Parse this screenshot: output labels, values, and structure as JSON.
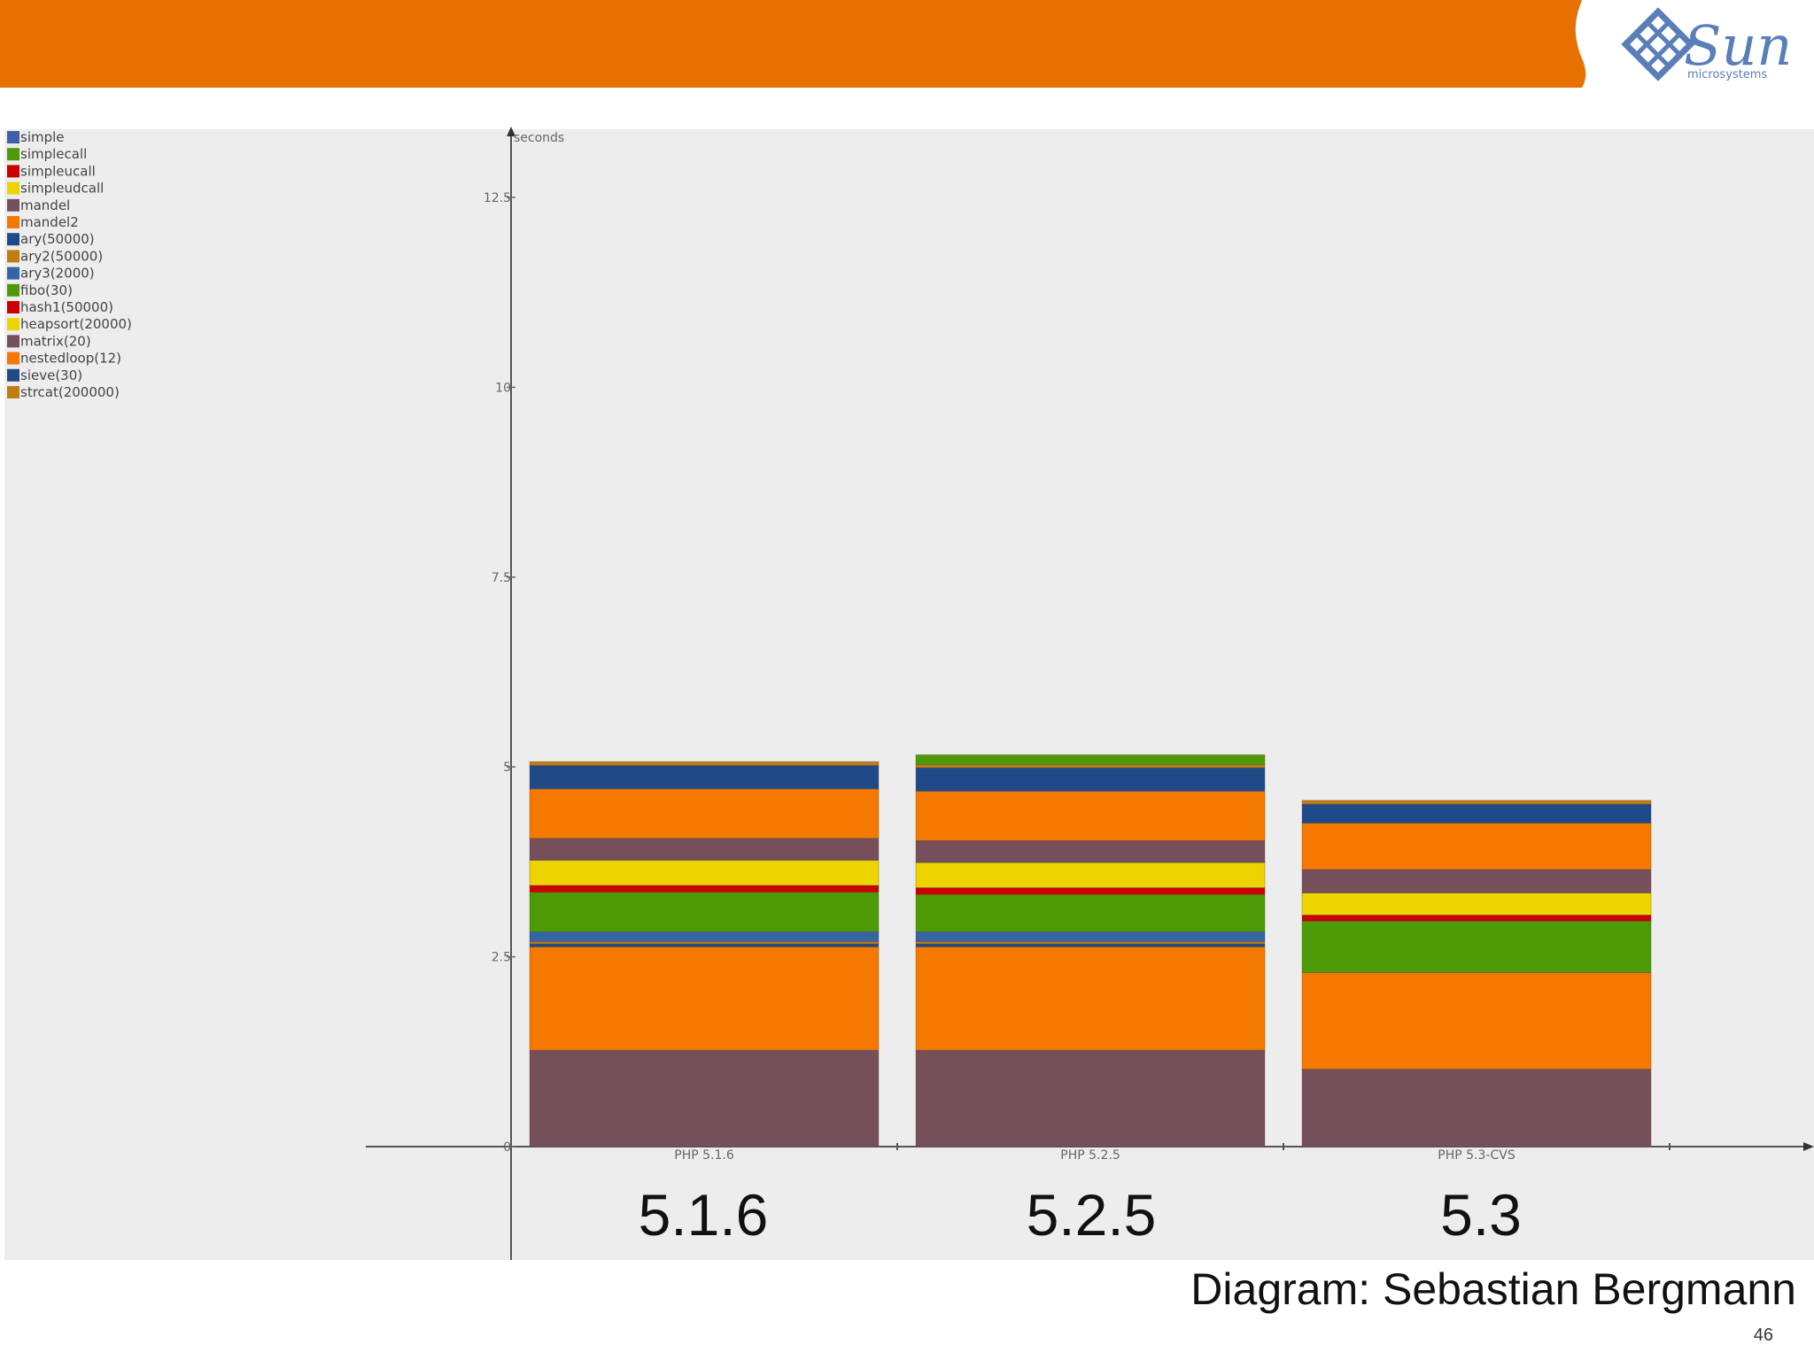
{
  "slide": {
    "header_color": "#E87000",
    "page_number": "46",
    "caption": "Diagram: Sebastian Bergmann",
    "version_labels": [
      "5.1.6",
      "5.2.5",
      "5.3"
    ]
  },
  "logo": {
    "name": "Sun",
    "sub": "microsystems",
    "color": "#5A7FB8"
  },
  "chart_data": {
    "type": "bar",
    "stacked": true,
    "ylabel": "seconds",
    "ylim": [
      0,
      14
    ],
    "yticks": [
      "0",
      "2.5",
      "5",
      "7.5",
      "10",
      "12.5"
    ],
    "categories": [
      "PHP 5.1.6",
      "PHP 5.2.5",
      "PHP 5.3-CVS"
    ],
    "series": [
      {
        "name": "simple",
        "color": "#3F5FA8",
        "values": [
          0,
          0,
          0
        ]
      },
      {
        "name": "simplecall",
        "color": "#4E9A06",
        "values": [
          0,
          0,
          0
        ]
      },
      {
        "name": "simpleucall",
        "color": "#CC0000",
        "values": [
          0,
          0,
          0
        ]
      },
      {
        "name": "simpleudcall",
        "color": "#EDD400",
        "values": [
          0,
          0,
          0
        ]
      },
      {
        "name": "mandel",
        "color": "#75505B",
        "values": [
          1.27,
          1.27,
          1.02
        ]
      },
      {
        "name": "mandel2",
        "color": "#F57900",
        "values": [
          1.36,
          1.36,
          1.27
        ]
      },
      {
        "name": "ary(50000)",
        "color": "#204A87",
        "values": [
          0.04,
          0.04,
          0
        ]
      },
      {
        "name": "ary2(50000)",
        "color": "#C17D11",
        "values": [
          0.03,
          0.03,
          0
        ]
      },
      {
        "name": "ary3(2000)",
        "color": "#3465A4",
        "values": [
          0.13,
          0.13,
          0
        ]
      },
      {
        "name": "fibo(30)",
        "color": "#4E9A06",
        "values": [
          0.52,
          0.49,
          0.68
        ]
      },
      {
        "name": "hash1(50000)",
        "color": "#CC0000",
        "values": [
          0.09,
          0.09,
          0.08
        ]
      },
      {
        "name": "heapsort(20000)",
        "color": "#EDD400",
        "values": [
          0.33,
          0.33,
          0.29
        ]
      },
      {
        "name": "matrix(20)",
        "color": "#75505B",
        "values": [
          0.29,
          0.29,
          0.31
        ]
      },
      {
        "name": "nestedloop(12)",
        "color": "#F57900",
        "values": [
          0.65,
          0.65,
          0.61
        ]
      },
      {
        "name": "sieve(30)",
        "color": "#204A87",
        "values": [
          0.31,
          0.31,
          0.25
        ]
      },
      {
        "name": "strcat(200000)",
        "color": "#C17D11",
        "values": [
          0.05,
          0.04,
          0.05
        ]
      },
      {
        "name": "",
        "color": "#4E9A06",
        "values": [
          0,
          0.13,
          0
        ]
      }
    ]
  }
}
